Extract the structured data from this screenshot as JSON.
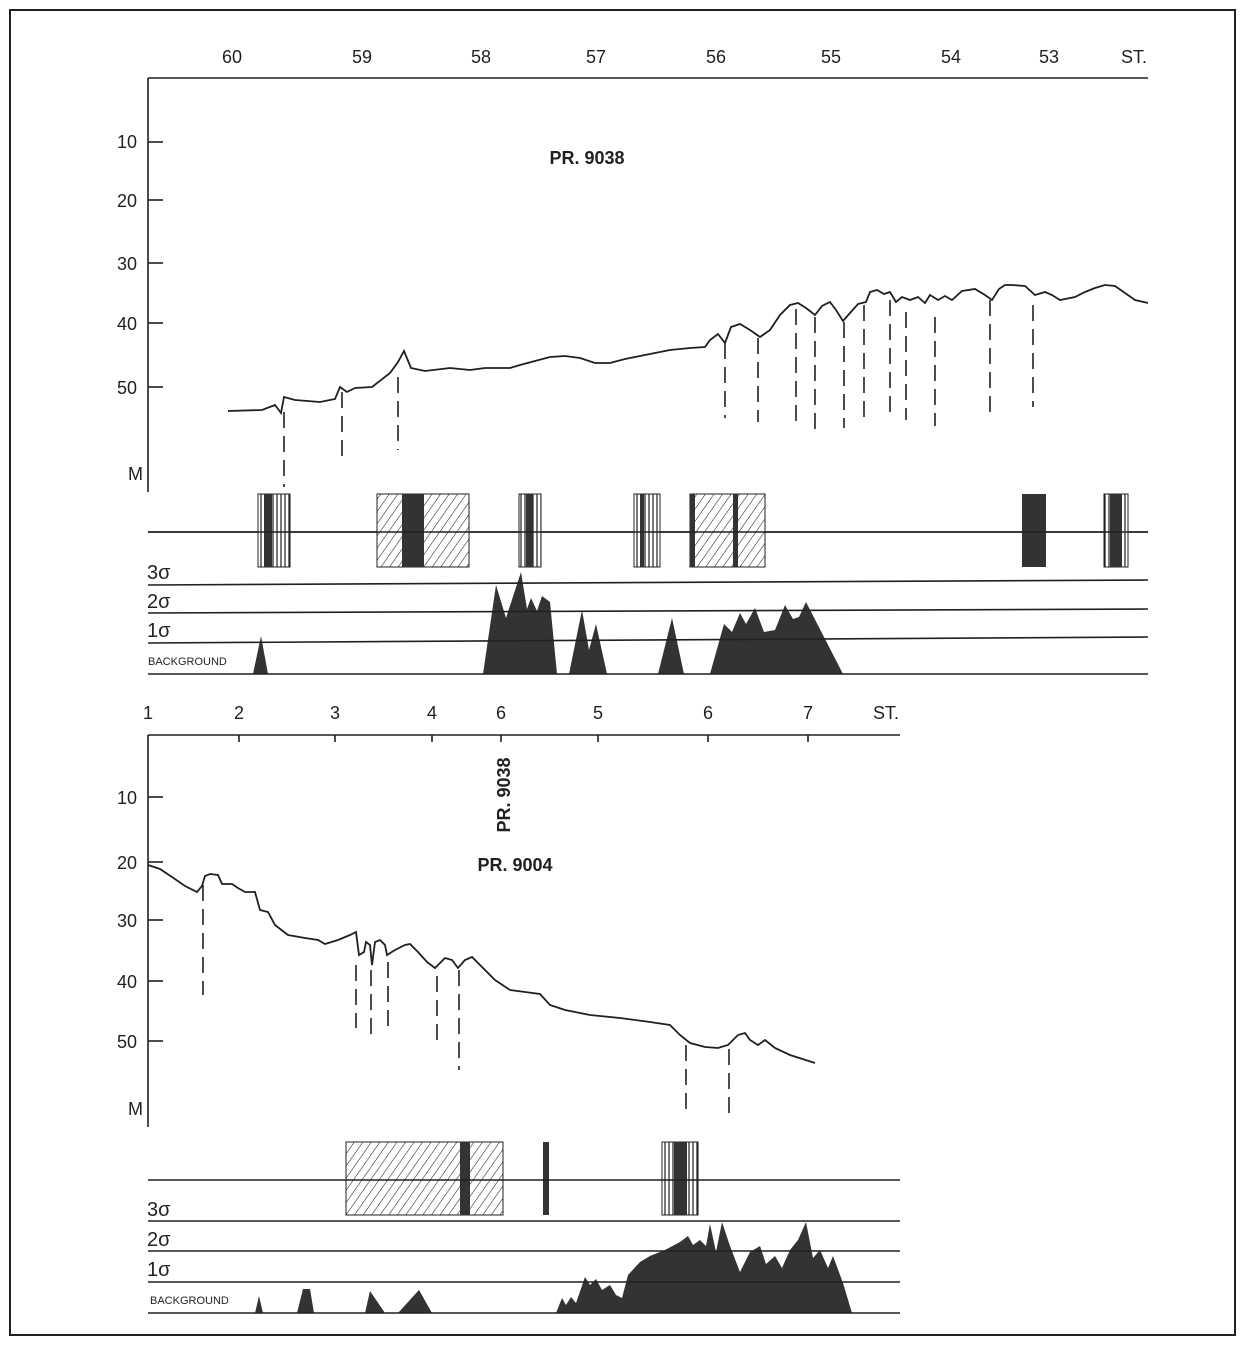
{
  "sections": [
    {
      "name": "PR. 9038",
      "title": "PR. 9038",
      "station_label": "ST.",
      "stations": [
        "60",
        "59",
        "58",
        "57",
        "56",
        "55",
        "54",
        "53"
      ],
      "depth_unit": "M",
      "depth_ticks": [
        "10",
        "20",
        "30",
        "40",
        "50"
      ],
      "sigma_labels": [
        "3σ",
        "2σ",
        "1σ"
      ],
      "background_label": "BACKGROUND"
    },
    {
      "name": "PR. 9004",
      "title": "PR. 9004",
      "crossing_label": "PR. 9038",
      "station_label": "ST.",
      "stations": [
        "1",
        "2",
        "3",
        "4",
        "6",
        "5",
        "6",
        "7"
      ],
      "depth_unit": "M",
      "depth_ticks": [
        "10",
        "20",
        "30",
        "40",
        "50"
      ],
      "sigma_labels": [
        "3σ",
        "2σ",
        "1σ"
      ],
      "background_label": "BACKGROUND"
    }
  ]
}
